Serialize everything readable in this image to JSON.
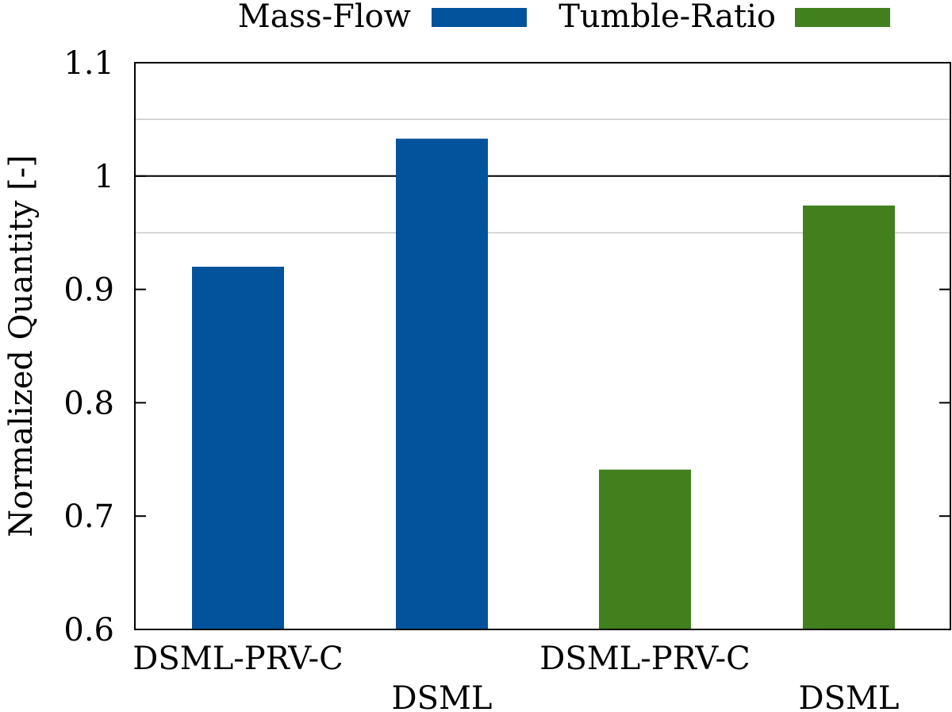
{
  "chart_data": {
    "type": "bar",
    "ylabel": "Normalized Quantity [-]",
    "ylim": [
      0.6,
      1.1
    ],
    "yticks": [
      0.6,
      0.7,
      0.8,
      0.9,
      1.0,
      1.1
    ],
    "ytick_labels": [
      "0.6",
      "0.7",
      "0.8",
      "0.9",
      "1",
      "1.1"
    ],
    "reference_lines": [
      {
        "y": 1.0,
        "style": "solid"
      },
      {
        "y": 1.05,
        "style": "light"
      },
      {
        "y": 0.95,
        "style": "light"
      }
    ],
    "legend_position": "top",
    "series": [
      {
        "name": "Mass-Flow",
        "color": "#03529c",
        "categories": [
          "DSML-PRV-C",
          "DSML"
        ],
        "values": [
          0.92,
          1.033
        ]
      },
      {
        "name": "Tumble-Ratio",
        "color": "#41801d",
        "categories": [
          "DSML-PRV-C",
          "DSML"
        ],
        "values": [
          0.741,
          0.974
        ]
      }
    ]
  }
}
